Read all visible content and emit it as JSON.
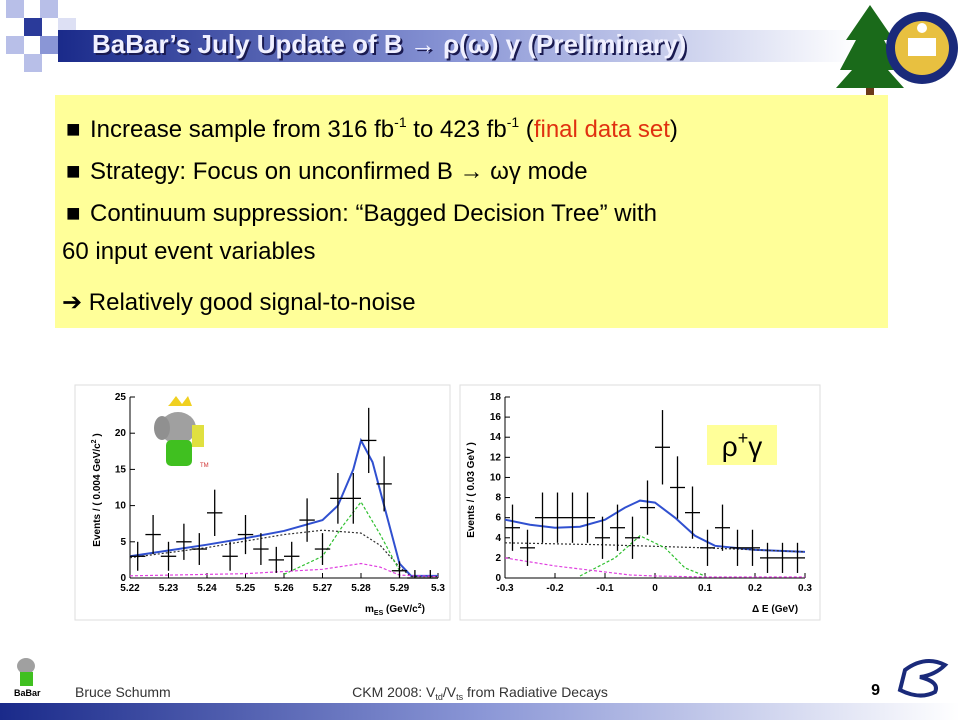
{
  "header": {
    "title": [
      "BaBar’s July Update of B ",
      "→",
      " ρ(ω) ",
      "γ",
      " (Preliminary)"
    ]
  },
  "bullets": [
    [
      "Increase sample from 316 fb",
      "-1",
      " to 423 fb",
      "-1",
      " (",
      "final data set",
      ")"
    ],
    [
      "Strategy: Focus on unconfirmed B ",
      "→",
      " ωγ mode"
    ],
    [
      "Continuum suppression: “Bagged Decision Tree” with",
      "60 input event variables"
    ]
  ],
  "conclusion": [
    "➔",
    " Relatively good signal-to-noise"
  ],
  "footer": {
    "author": "Bruce Schumm",
    "center": [
      "CKM 2008: V",
      "td",
      "/V",
      "ts",
      " from Radiative Decays"
    ],
    "page": "9",
    "logo": "BaBar"
  },
  "chart_data": [
    {
      "type": "errorbar",
      "y_label": [
        "Events / ( 0.004 GeV/c",
        "2",
        " )"
      ],
      "x_label": [
        "m",
        "ES",
        " (GeV/c",
        "2",
        ")"
      ],
      "logo_tm": "TM",
      "xlim": [
        5.22,
        5.3
      ],
      "xticks": [
        5.22,
        5.23,
        5.24,
        5.25,
        5.26,
        5.27,
        5.28,
        5.29,
        5.3
      ],
      "ylim": [
        0,
        25
      ],
      "yticks": [
        0,
        5,
        10,
        15,
        20,
        25
      ],
      "bin_width": 0.004,
      "x": [
        5.222,
        5.226,
        5.23,
        5.234,
        5.238,
        5.242,
        5.246,
        5.25,
        5.254,
        5.258,
        5.262,
        5.266,
        5.27,
        5.274,
        5.278,
        5.282,
        5.286,
        5.29,
        5.294,
        5.298
      ],
      "values": [
        3,
        6,
        3,
        5,
        4,
        9,
        3,
        6,
        4,
        2.5,
        3,
        8,
        4,
        11,
        11,
        19,
        13,
        1,
        0,
        0
      ],
      "errors": [
        2,
        2.7,
        2,
        2.5,
        2.2,
        3.2,
        2,
        2.7,
        2.2,
        1.8,
        2,
        3,
        2.2,
        3.5,
        3.5,
        4.5,
        3.8,
        1.3,
        1.1,
        1.1
      ],
      "lines": [
        {
          "color": "#3050d0",
          "dash": "",
          "x": [
            5.22,
            5.23,
            5.24,
            5.25,
            5.26,
            5.27,
            5.274,
            5.278,
            5.28,
            5.283,
            5.286,
            5.29,
            5.293,
            5.3
          ],
          "values": [
            3,
            3.8,
            4.6,
            5.5,
            6.5,
            8,
            10,
            15,
            19,
            16,
            10,
            2,
            0.3,
            0.3
          ]
        },
        {
          "color": "#303030",
          "dash": "2,2",
          "x": [
            5.22,
            5.24,
            5.26,
            5.27,
            5.28,
            5.285,
            5.29,
            5.293,
            5.3
          ],
          "values": [
            2.8,
            4.2,
            6,
            6.6,
            6.2,
            4.5,
            1.5,
            0.2,
            0.2
          ]
        },
        {
          "color": "#30c030",
          "dash": "3,2",
          "x": [
            5.26,
            5.27,
            5.275,
            5.28,
            5.285,
            5.29
          ],
          "values": [
            0.5,
            3,
            7,
            10.5,
            6,
            1
          ]
        },
        {
          "color": "#e040e0",
          "dash": "3,2",
          "x": [
            5.22,
            5.25,
            5.27,
            5.28,
            5.285,
            5.29,
            5.3
          ],
          "values": [
            0.3,
            0.6,
            1.2,
            2,
            1.5,
            0.4,
            0.2
          ]
        }
      ]
    },
    {
      "type": "errorbar",
      "y_label": [
        "Events / ( 0.03 GeV )"
      ],
      "x_label": [
        "Δ E (GeV)"
      ],
      "annotation": [
        "ρ",
        "+",
        "γ"
      ],
      "xlim": [
        -0.3,
        0.3
      ],
      "xticks": [
        -0.3,
        -0.2,
        -0.1,
        0,
        0.1,
        0.2,
        0.3
      ],
      "ylim": [
        0,
        18
      ],
      "yticks": [
        0,
        2,
        4,
        6,
        8,
        10,
        12,
        14,
        16,
        18
      ],
      "bin_width": 0.03,
      "x": [
        -0.285,
        -0.255,
        -0.225,
        -0.195,
        -0.165,
        -0.135,
        -0.105,
        -0.075,
        -0.045,
        -0.015,
        0.015,
        0.045,
        0.075,
        0.105,
        0.135,
        0.165,
        0.195,
        0.225,
        0.255,
        0.285
      ],
      "values": [
        5,
        3,
        6,
        6,
        6,
        6,
        4,
        5,
        4,
        7,
        13,
        9,
        6.5,
        3,
        5,
        3,
        3,
        2,
        2,
        2
      ],
      "errors": [
        2.3,
        1.8,
        2.5,
        2.5,
        2.5,
        2.5,
        2.1,
        2.3,
        2.1,
        2.7,
        3.7,
        3.1,
        2.6,
        1.8,
        2.3,
        1.8,
        1.8,
        1.5,
        1.5,
        1.5
      ],
      "lines": [
        {
          "color": "#3050d0",
          "dash": "",
          "x": [
            -0.3,
            -0.25,
            -0.2,
            -0.15,
            -0.1,
            -0.06,
            -0.03,
            0,
            0.04,
            0.08,
            0.12,
            0.2,
            0.3
          ],
          "values": [
            5.8,
            5.3,
            5,
            5.1,
            5.8,
            7,
            7.7,
            7.5,
            6,
            4.2,
            3.2,
            2.8,
            2.6
          ]
        },
        {
          "color": "#303030",
          "dash": "2,2",
          "x": [
            -0.3,
            -0.1,
            0.1,
            0.3
          ],
          "values": [
            3.5,
            3.3,
            3,
            2.6
          ]
        },
        {
          "color": "#30c030",
          "dash": "3,2",
          "x": [
            -0.15,
            -0.08,
            -0.03,
            0.02,
            0.06,
            0.1
          ],
          "values": [
            0.2,
            2,
            4.2,
            3,
            1,
            0.2
          ]
        },
        {
          "color": "#e040e0",
          "dash": "3,2",
          "x": [
            -0.3,
            -0.2,
            -0.1,
            -0.05,
            0,
            0.1,
            0.3
          ],
          "values": [
            2,
            1.2,
            0.6,
            0.3,
            0.2,
            0.1,
            0.1
          ]
        }
      ]
    }
  ]
}
